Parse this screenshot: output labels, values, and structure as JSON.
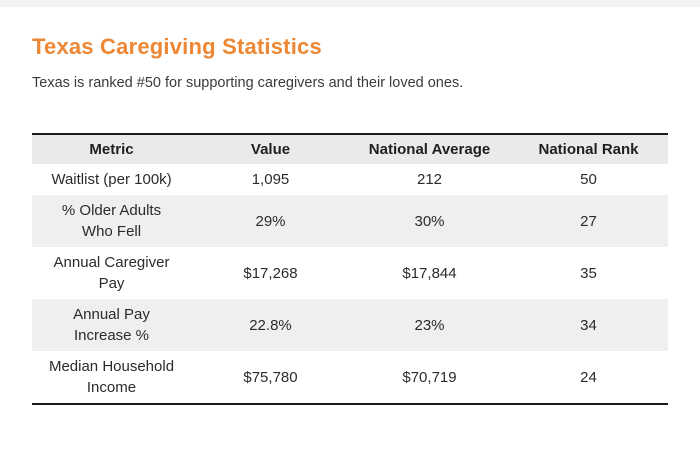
{
  "page": {
    "title": "Texas Caregiving Statistics",
    "subtitle": "Texas is ranked #50 for supporting caregivers and their loved ones."
  },
  "colors": {
    "accent_orange": "#ed8733",
    "body_text": "#2b2b2b",
    "subtitle_text": "#3b3b3b",
    "header_row_bg": "#eaeaea",
    "alt_row_bg": "#efefef",
    "table_border": "#1a1a1a"
  },
  "table": {
    "headers": [
      "Metric",
      "Value",
      "National Average",
      "National Rank"
    ],
    "rows": [
      {
        "metric_line1": "Waitlist (per 100k)",
        "value": "1,095",
        "national_average": "212",
        "national_rank": "50"
      },
      {
        "metric_line1": "% Older Adults",
        "metric_line2": "Who Fell",
        "value": "29%",
        "national_average": "30%",
        "national_rank": "27"
      },
      {
        "metric_line1": "Annual Caregiver",
        "metric_line2": "Pay",
        "value": "$17,268",
        "national_average": "$17,844",
        "national_rank": "35"
      },
      {
        "metric_line1": "Annual Pay",
        "metric_line2": "Increase %",
        "value": "22.8%",
        "national_average": "23%",
        "national_rank": "34"
      },
      {
        "metric_line1": "Median Household",
        "metric_line2": "Income",
        "value": "$75,780",
        "national_average": "$70,719",
        "national_rank": "24"
      }
    ]
  },
  "chart_data": {
    "type": "table",
    "title": "Texas Caregiving Statistics",
    "subtitle": "Texas is ranked #50 for supporting caregivers and their loved ones.",
    "columns": [
      "Metric",
      "Value",
      "National Average",
      "National Rank"
    ],
    "rows": [
      [
        "Waitlist (per 100k)",
        "1,095",
        "212",
        "50"
      ],
      [
        "% Older Adults Who Fell",
        "29%",
        "30%",
        "27"
      ],
      [
        "Annual Caregiver Pay",
        "$17,268",
        "$17,844",
        "35"
      ],
      [
        "Annual Pay Increase %",
        "22.8%",
        "23%",
        "34"
      ],
      [
        "Median Household Income",
        "$75,780",
        "$70,719",
        "24"
      ]
    ]
  }
}
